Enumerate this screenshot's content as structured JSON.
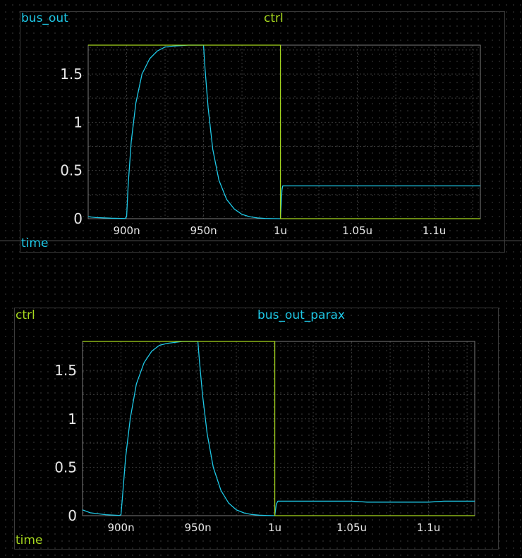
{
  "colors": {
    "background": "#000000",
    "grid": "#3a3a3a",
    "axis_box": "#7a7a7a",
    "tick_text": "#e6e6e6",
    "cyan": "#1ec8e6",
    "green": "#a6d81e"
  },
  "chart_data": [
    {
      "type": "line",
      "xlabel": "time",
      "xlim": [
        875,
        1130
      ],
      "ylim": [
        0,
        1.8
      ],
      "xtick_values": [
        900,
        950,
        1000,
        1050,
        1100
      ],
      "xtick_labels": [
        "900n",
        "950n",
        "1u",
        "1.05u",
        "1.1u"
      ],
      "ytick_values": [
        0,
        0.5,
        1,
        1.5
      ],
      "ytick_labels": [
        "0",
        "0.5",
        "1",
        "1.5"
      ],
      "grid": true,
      "legend": [
        "bus_out",
        "ctrl"
      ],
      "series": [
        {
          "name": "bus_out",
          "color": "cyan",
          "x": [
            875,
            880,
            890,
            899,
            900,
            901,
            903,
            906,
            910,
            915,
            920,
            925,
            930,
            940,
            950,
            951,
            953,
            956,
            960,
            965,
            970,
            975,
            980,
            985,
            990,
            995,
            1000,
            1001,
            1001.5,
            1010,
            1050,
            1100,
            1130
          ],
          "y": [
            0.02,
            0.012,
            0.005,
            0.002,
            0.02,
            0.35,
            0.8,
            1.2,
            1.5,
            1.66,
            1.74,
            1.78,
            1.79,
            1.8,
            1.8,
            1.55,
            1.15,
            0.72,
            0.4,
            0.2,
            0.1,
            0.045,
            0.02,
            0.008,
            0.003,
            0.001,
            0.0,
            0.3,
            0.34,
            0.34,
            0.34,
            0.34,
            0.34
          ]
        },
        {
          "name": "ctrl",
          "color": "green",
          "x": [
            875,
            1000,
            1000,
            1130
          ],
          "y": [
            1.8,
            1.8,
            0,
            0
          ]
        }
      ]
    },
    {
      "type": "line",
      "xlabel": "time",
      "xlim": [
        875,
        1130
      ],
      "ylim": [
        0,
        1.8
      ],
      "xtick_values": [
        900,
        950,
        1000,
        1050,
        1100
      ],
      "xtick_labels": [
        "900n",
        "950n",
        "1u",
        "1.05u",
        "1.1u"
      ],
      "ytick_values": [
        0,
        0.5,
        1,
        1.5
      ],
      "ytick_labels": [
        "0",
        "0.5",
        "1",
        "1.5"
      ],
      "grid": true,
      "legend": [
        "ctrl",
        "bus_out_parax"
      ],
      "series": [
        {
          "name": "bus_out_parax",
          "color": "cyan",
          "x": [
            875,
            880,
            890,
            899,
            900,
            901,
            903,
            906,
            910,
            915,
            920,
            925,
            930,
            940,
            950,
            951,
            953,
            956,
            960,
            965,
            970,
            975,
            980,
            985,
            990,
            995,
            1000,
            1001,
            1002,
            1010,
            1050,
            1060,
            1100,
            1110,
            1130
          ],
          "y": [
            0.06,
            0.03,
            0.01,
            0.003,
            0.01,
            0.2,
            0.6,
            1.0,
            1.36,
            1.58,
            1.7,
            1.76,
            1.78,
            1.8,
            1.8,
            1.6,
            1.25,
            0.85,
            0.5,
            0.26,
            0.13,
            0.06,
            0.028,
            0.012,
            0.005,
            0.002,
            0.0,
            0.12,
            0.15,
            0.15,
            0.15,
            0.14,
            0.14,
            0.15,
            0.15
          ]
        },
        {
          "name": "ctrl",
          "color": "green",
          "x": [
            875,
            1000,
            1000,
            1130
          ],
          "y": [
            1.8,
            1.8,
            0,
            0
          ]
        }
      ]
    }
  ]
}
